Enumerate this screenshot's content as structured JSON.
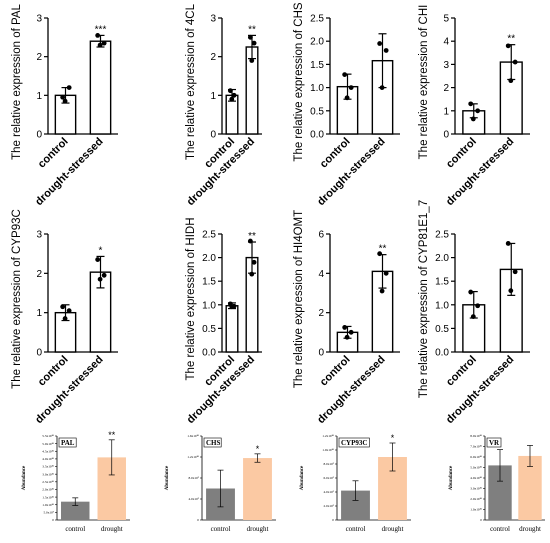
{
  "figure": {
    "rows": [
      [
        "PAL",
        "4CL",
        "CHS",
        "CHI"
      ],
      [
        "CYP93C",
        "HIDH",
        "HI4OMT",
        "CYP81E1_7"
      ],
      [
        "PAL_abund",
        "CHS_abund",
        "CYP93C_abund",
        "VR_abund"
      ]
    ]
  },
  "chart_data": [
    {
      "id": "PAL",
      "type": "bar",
      "ylabel": "The relative expression of PAL",
      "categories": [
        "control",
        "drought-stressed"
      ],
      "values": [
        1.0,
        2.4
      ],
      "error": [
        0.2,
        0.15
      ],
      "points": [
        [
          0.95,
          1.2,
          0.85
        ],
        [
          2.55,
          2.35,
          2.3
        ]
      ],
      "significance": [
        "",
        "***"
      ],
      "ylim": [
        0,
        3
      ],
      "yticks": [
        0,
        1,
        2,
        3
      ],
      "ytick_labels": [
        "0",
        "1",
        "2",
        "3"
      ]
    },
    {
      "id": "4CL",
      "type": "bar",
      "ylabel": "The relative expression of 4CL",
      "categories": [
        "control",
        "drought-stressed"
      ],
      "values": [
        1.0,
        2.25
      ],
      "error": [
        0.15,
        0.3
      ],
      "points": [
        [
          1.12,
          1.0,
          0.9
        ],
        [
          2.5,
          2.35,
          1.9
        ]
      ],
      "significance": [
        "",
        "**"
      ],
      "ylim": [
        0,
        3
      ],
      "yticks": [
        0,
        1,
        2,
        3
      ],
      "ytick_labels": [
        "0",
        "1",
        "2",
        "3"
      ]
    },
    {
      "id": "CHS",
      "type": "bar",
      "ylabel": "The relative expression of CHS",
      "categories": [
        "control",
        "drought-stressed"
      ],
      "values": [
        1.02,
        1.58
      ],
      "error": [
        0.27,
        0.58
      ],
      "points": [
        [
          1.28,
          1.0,
          0.78
        ],
        [
          1.95,
          1.8,
          1.0
        ]
      ],
      "significance": [
        "",
        ""
      ],
      "ylim": [
        0,
        2.5
      ],
      "yticks": [
        0,
        0.5,
        1.0,
        1.5,
        2.0,
        2.5
      ],
      "ytick_labels": [
        "0.0",
        "0.5",
        "1.0",
        "1.5",
        "2.0",
        "2.5"
      ]
    },
    {
      "id": "CHI",
      "type": "bar",
      "ylabel": "The relative expression of CHI",
      "categories": [
        "control",
        "drought-stressed"
      ],
      "values": [
        1.0,
        3.1
      ],
      "error": [
        0.3,
        0.75
      ],
      "points": [
        [
          1.3,
          1.0,
          0.65
        ],
        [
          3.8,
          3.1,
          2.3
        ]
      ],
      "significance": [
        "",
        "**"
      ],
      "ylim": [
        0,
        5
      ],
      "yticks": [
        0,
        1,
        2,
        3,
        4,
        5
      ],
      "ytick_labels": [
        "0",
        "1",
        "2",
        "3",
        "4",
        "5"
      ]
    },
    {
      "id": "CYP93C",
      "type": "bar",
      "ylabel": "The relative expression of CYP93C",
      "categories": [
        "control",
        "drought-stressed"
      ],
      "values": [
        1.0,
        2.03
      ],
      "error": [
        0.2,
        0.4
      ],
      "points": [
        [
          1.15,
          1.05,
          0.85
        ],
        [
          2.35,
          1.95,
          1.85
        ]
      ],
      "significance": [
        "",
        "*"
      ],
      "ylim": [
        0,
        3
      ],
      "yticks": [
        0,
        1,
        2,
        3
      ],
      "ytick_labels": [
        "0",
        "1",
        "2",
        "3"
      ]
    },
    {
      "id": "HIDH",
      "type": "bar",
      "ylabel": "The relative expression of HIDH",
      "categories": [
        "control",
        "drought-stressed"
      ],
      "values": [
        0.98,
        2.0
      ],
      "error": [
        0.06,
        0.33
      ],
      "points": [
        [
          1.02,
          0.97,
          0.96
        ],
        [
          2.35,
          1.9,
          1.65
        ]
      ],
      "significance": [
        "",
        "**"
      ],
      "ylim": [
        0,
        2.5
      ],
      "yticks": [
        0,
        0.5,
        1.0,
        1.5,
        2.0,
        2.5
      ],
      "ytick_labels": [
        "0.0",
        "0.5",
        "1.0",
        "1.5",
        "2.0",
        "2.5"
      ]
    },
    {
      "id": "HI4OMT",
      "type": "bar",
      "ylabel": "The relative expression of HI4OMT",
      "categories": [
        "control",
        "drought-stressed"
      ],
      "values": [
        1.0,
        4.1
      ],
      "error": [
        0.3,
        0.85
      ],
      "points": [
        [
          1.25,
          1.0,
          0.75
        ],
        [
          5.0,
          4.0,
          3.1
        ]
      ],
      "significance": [
        "",
        "**"
      ],
      "ylim": [
        0,
        6
      ],
      "yticks": [
        0,
        2,
        4,
        6
      ],
      "ytick_labels": [
        "0",
        "2",
        "4",
        "6"
      ]
    },
    {
      "id": "CYP81E1_7",
      "type": "bar",
      "ylabel": "The relative expression of CYP81E1_7",
      "categories": [
        "control",
        "drought-stressed"
      ],
      "values": [
        1.0,
        1.75
      ],
      "error": [
        0.28,
        0.55
      ],
      "points": [
        [
          1.27,
          0.98,
          0.75
        ],
        [
          2.3,
          1.7,
          1.3
        ]
      ],
      "significance": [
        "",
        ""
      ],
      "ylim": [
        0,
        2.5
      ],
      "yticks": [
        0,
        0.5,
        1.0,
        1.5,
        2.0,
        2.5
      ],
      "ytick_labels": [
        "0.0",
        "0.5",
        "1.0",
        "1.5",
        "2.0",
        "2.5"
      ]
    },
    {
      "id": "PAL_abund",
      "type": "bar",
      "title": "PAL",
      "ylabel": "Abundance",
      "categories": [
        "control",
        "drought"
      ],
      "values": [
        12000000000.0,
        41000000000.0
      ],
      "error": [
        2500000000.0,
        11500000000.0
      ],
      "significance": [
        "",
        "**"
      ],
      "colors": [
        "#7f7f7f",
        "#fbc9a3"
      ],
      "ylim": [
        0,
        55000000000.0
      ],
      "yticks": [
        0,
        5000000000.0,
        10000000000.0,
        15000000000.0,
        20000000000.0,
        25000000000.0,
        30000000000.0,
        35000000000.0,
        40000000000.0,
        45000000000.0,
        50000000000.0,
        55000000000.0
      ],
      "ytick_labels": [
        "0",
        "5.0x10⁹",
        "1.0x10¹⁰",
        "1.5x10¹⁰",
        "2.0x10¹⁰",
        "2.5x10¹⁰",
        "3.0x10¹⁰",
        "3.5x10¹⁰",
        "4.0x10¹⁰",
        "4.5x10¹⁰",
        "5.0x10¹⁰",
        "5.5x10¹⁰"
      ]
    },
    {
      "id": "CHS_abund",
      "type": "bar",
      "title": "CHS",
      "ylabel": "Abundance",
      "categories": [
        "control",
        "drought"
      ],
      "values": [
        6000000000.0,
        11800000000.0
      ],
      "error": [
        3500000000.0,
        800000000.0
      ],
      "significance": [
        "",
        "*"
      ],
      "colors": [
        "#7f7f7f",
        "#fbc9a3"
      ],
      "ylim": [
        0,
        16000000000.0
      ],
      "yticks": [
        0,
        4000000000.0,
        8000000000.0,
        12000000000.0,
        16000000000.0
      ],
      "ytick_labels": [
        "0",
        "4.0x10⁹",
        "8.0x10⁹",
        "1.2x10¹⁰",
        "1.6x10¹⁰"
      ]
    },
    {
      "id": "CYP93C_abund",
      "type": "bar",
      "title": "CYP93C",
      "ylabel": "Abundance",
      "categories": [
        "control",
        "drought"
      ],
      "values": [
        4200000000.0,
        9000000000.0
      ],
      "error": [
        1400000000.0,
        2000000000.0
      ],
      "significance": [
        "",
        "*"
      ],
      "colors": [
        "#7f7f7f",
        "#fbc9a3"
      ],
      "ylim": [
        0,
        12000000000.0
      ],
      "yticks": [
        0,
        2000000000.0,
        4000000000.0,
        6000000000.0,
        8000000000.0,
        10000000000.0,
        12000000000.0
      ],
      "ytick_labels": [
        "0",
        "2.0x10⁹",
        "4.0x10⁹",
        "6.0x10⁹",
        "8.0x10⁹",
        "1.0x10¹⁰",
        "1.2x10¹⁰"
      ]
    },
    {
      "id": "VR_abund",
      "type": "bar",
      "title": "VR",
      "ylabel": "Abundance",
      "categories": [
        "control",
        "drought"
      ],
      "values": [
        52000000000.0,
        61000000000.0
      ],
      "error": [
        15000000000.0,
        10000000000.0
      ],
      "significance": [
        "",
        ""
      ],
      "colors": [
        "#7f7f7f",
        "#fbc9a3"
      ],
      "ylim": [
        0,
        80000000000.0
      ],
      "yticks": [
        0,
        10000000000.0,
        20000000000.0,
        30000000000.0,
        40000000000.0,
        50000000000.0,
        60000000000.0,
        70000000000.0,
        80000000000.0
      ],
      "ytick_labels": [
        "0",
        "1.0x10¹⁰",
        "2.0x10¹⁰",
        "3.0x10¹⁰",
        "4.0x10¹⁰",
        "5.0x10¹⁰",
        "6.0x10¹⁰",
        "7.0x10¹⁰",
        "8.0x10¹⁰"
      ]
    }
  ]
}
